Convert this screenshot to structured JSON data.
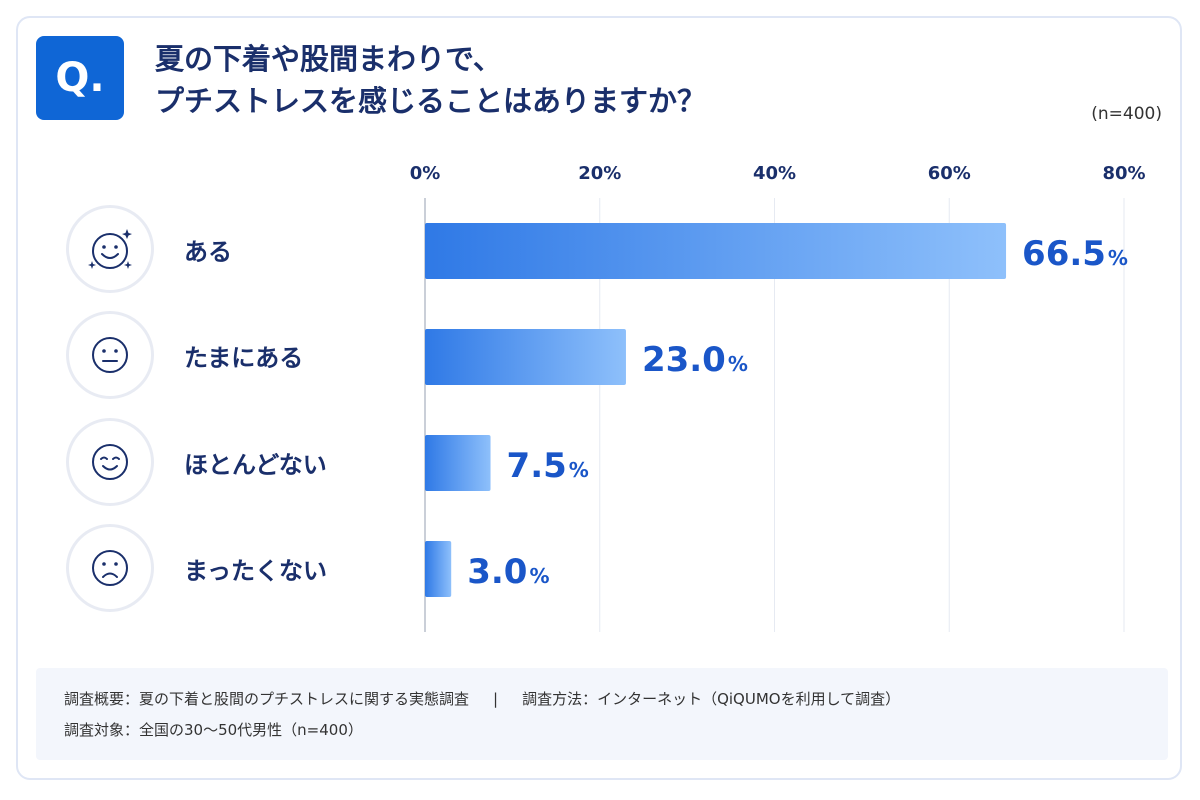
{
  "badge": "Q.",
  "question": {
    "line1": "夏の下着や股間まわりで、",
    "line2": "プチストレスを感じることはありますか？"
  },
  "sample_size": "(n=400)",
  "chart_data": {
    "type": "bar",
    "orientation": "horizontal",
    "categories": [
      "ある",
      "たまにある",
      "ほとんどない",
      "まったくない"
    ],
    "values": [
      66.5,
      23.0,
      7.5,
      3.0
    ],
    "value_labels": [
      "66.5",
      "23.0",
      "7.5",
      "3.0"
    ],
    "unit": "%",
    "xlim": [
      0,
      80
    ],
    "ticks": [
      0,
      20,
      40,
      60,
      80
    ],
    "tick_labels": [
      "0%",
      "20%",
      "40%",
      "60%",
      "80%"
    ],
    "axis_position": "top",
    "grid": true,
    "colors": {
      "bar_start": "#2f79e6",
      "bar_end": "#8ec0fb",
      "label": "#1a56c8"
    }
  },
  "icons": [
    "smile-sparkle-icon",
    "neutral-face-icon",
    "smile-face-icon",
    "sad-face-icon"
  ],
  "notes": {
    "overview": "調査概要：夏の下着と股間のプチストレスに関する実態調査",
    "separator": "|",
    "method": "調査方法：インターネット（QiQUMOを利用して調査）",
    "target": "調査対象：全国の30〜50代男性（n=400）"
  }
}
